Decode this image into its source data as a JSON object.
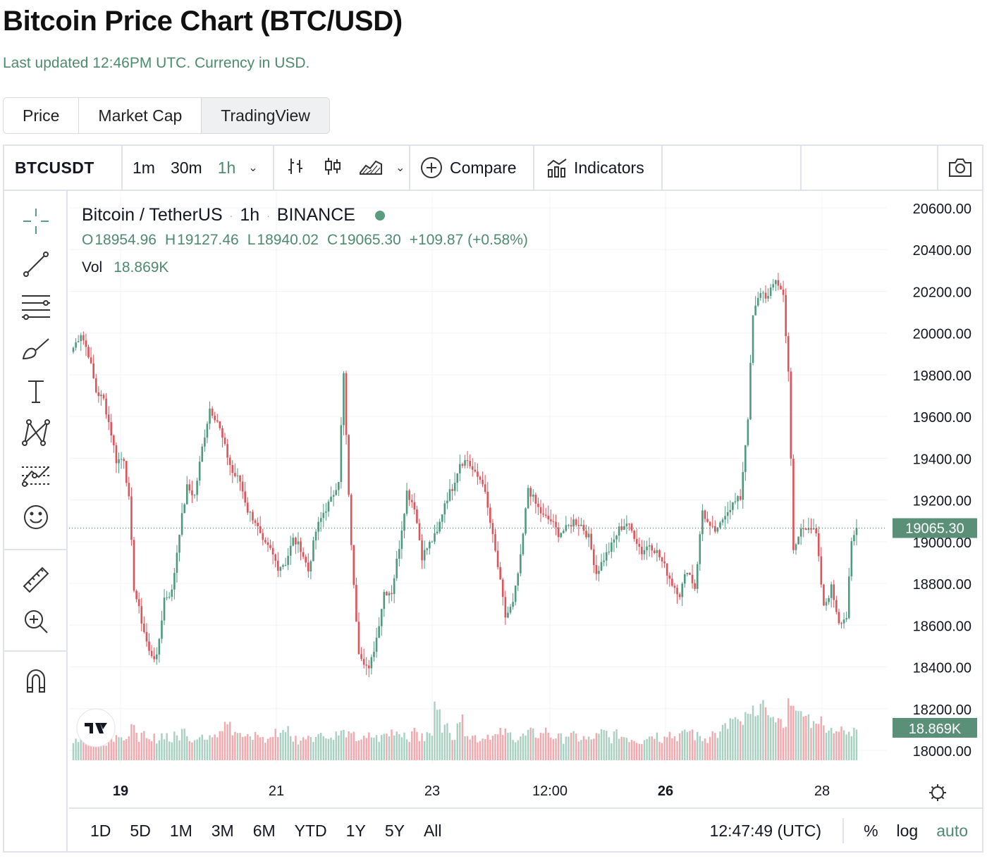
{
  "header": {
    "title": "Bitcoin Price Chart (BTC/USD)",
    "subtitle": "Last updated 12:46PM UTC. Currency in USD."
  },
  "tabs": [
    {
      "label": "Price"
    },
    {
      "label": "Market Cap"
    },
    {
      "label": "TradingView",
      "active": true
    }
  ],
  "toolbar": {
    "symbol": "BTCUSDT",
    "intervals": [
      "1m",
      "30m",
      "1h"
    ],
    "active_interval": "1h",
    "compare_label": "Compare",
    "indicators_label": "Indicators",
    "style_icons": [
      "bar-chart-icon",
      "candlestick-icon",
      "area-chart-icon"
    ],
    "camera_icon": "camera-icon"
  },
  "drawing_tools": [
    "crosshair-icon",
    "trend-line-icon",
    "horizontal-lines-icon",
    "brush-icon",
    "text-tool-icon",
    "pattern-icon",
    "prediction-icon",
    "smiley-icon",
    "ruler-icon",
    "zoom-in-icon",
    "magnet-icon"
  ],
  "legend": {
    "name": "Bitcoin / TetherUS",
    "interval": "1h",
    "exchange": "BINANCE",
    "o_label": "O",
    "o": "18954.96",
    "h_label": "H",
    "h": "19127.46",
    "l_label": "L",
    "l": "18940.02",
    "c_label": "C",
    "c": "19065.30",
    "change": "+109.87 (+0.58%)",
    "vol_label": "Vol",
    "vol": "18.869K"
  },
  "bottom_bar": {
    "ranges": [
      "1D",
      "5D",
      "1M",
      "3M",
      "6M",
      "YTD",
      "1Y",
      "5Y",
      "All"
    ],
    "time": "12:47:49 (UTC)",
    "percent": "%",
    "log": "log",
    "auto": "auto"
  },
  "colors": {
    "up": "#4f9a7f",
    "down": "#e0525a",
    "accent": "#4d8a6f",
    "price_tag": "#5a8f78"
  },
  "chart_data": {
    "type": "candlestick",
    "title": "Bitcoin / TetherUS",
    "interval": "1h",
    "exchange": "BINANCE",
    "y_ticks": [
      "20600.00",
      "20400.00",
      "20200.00",
      "20000.00",
      "19800.00",
      "19600.00",
      "19400.00",
      "19200.00",
      "19000.00",
      "18800.00",
      "18600.00",
      "18400.00",
      "18200.00",
      "18000.00"
    ],
    "x_ticks": [
      "19",
      "21",
      "23",
      "12:00",
      "26",
      "28"
    ],
    "x_ticks_bold": [
      "19",
      "26"
    ],
    "last_price": "19065.30",
    "last_volume": "18.869K",
    "ylim": [
      18000,
      20600
    ],
    "close_series_approx": [
      [
        0,
        19930
      ],
      [
        3,
        20000
      ],
      [
        6,
        19900
      ],
      [
        9,
        19720
      ],
      [
        12,
        19680
      ],
      [
        15,
        19520
      ],
      [
        17,
        19390
      ],
      [
        20,
        19400
      ],
      [
        22,
        19200
      ],
      [
        24,
        18780
      ],
      [
        27,
        18620
      ],
      [
        30,
        18470
      ],
      [
        33,
        18440
      ],
      [
        36,
        18730
      ],
      [
        39,
        18760
      ],
      [
        42,
        19050
      ],
      [
        45,
        19260
      ],
      [
        48,
        19220
      ],
      [
        51,
        19450
      ],
      [
        54,
        19640
      ],
      [
        57,
        19580
      ],
      [
        60,
        19450
      ],
      [
        63,
        19330
      ],
      [
        66,
        19290
      ],
      [
        69,
        19150
      ],
      [
        72,
        19100
      ],
      [
        75,
        18990
      ],
      [
        78,
        18960
      ],
      [
        81,
        18880
      ],
      [
        84,
        18900
      ],
      [
        87,
        19010
      ],
      [
        90,
        18970
      ],
      [
        93,
        18860
      ],
      [
        96,
        19050
      ],
      [
        99,
        19140
      ],
      [
        102,
        19200
      ],
      [
        105,
        19300
      ],
      [
        107,
        19800
      ],
      [
        109,
        19210
      ],
      [
        111,
        18780
      ],
      [
        113,
        18480
      ],
      [
        115,
        18430
      ],
      [
        117,
        18380
      ],
      [
        120,
        18540
      ],
      [
        123,
        18760
      ],
      [
        126,
        18760
      ],
      [
        129,
        18980
      ],
      [
        132,
        19240
      ],
      [
        135,
        19170
      ],
      [
        138,
        18930
      ],
      [
        141,
        18990
      ],
      [
        144,
        19040
      ],
      [
        147,
        19190
      ],
      [
        150,
        19260
      ],
      [
        153,
        19380
      ],
      [
        156,
        19390
      ],
      [
        159,
        19320
      ],
      [
        162,
        19290
      ],
      [
        165,
        19090
      ],
      [
        168,
        18880
      ],
      [
        171,
        18640
      ],
      [
        174,
        18700
      ],
      [
        177,
        18920
      ],
      [
        180,
        19260
      ],
      [
        183,
        19180
      ],
      [
        186,
        19120
      ],
      [
        189,
        19100
      ],
      [
        192,
        19040
      ],
      [
        195,
        19060
      ],
      [
        198,
        19100
      ],
      [
        201,
        19080
      ],
      [
        204,
        19020
      ],
      [
        207,
        18850
      ],
      [
        210,
        18920
      ],
      [
        213,
        18980
      ],
      [
        216,
        19060
      ],
      [
        219,
        19090
      ],
      [
        222,
        19030
      ],
      [
        225,
        18950
      ],
      [
        228,
        18990
      ],
      [
        231,
        18950
      ],
      [
        234,
        18880
      ],
      [
        237,
        18800
      ],
      [
        240,
        18750
      ],
      [
        243,
        18870
      ],
      [
        246,
        18780
      ],
      [
        249,
        19150
      ],
      [
        252,
        19060
      ],
      [
        255,
        19050
      ],
      [
        258,
        19140
      ],
      [
        261,
        19180
      ],
      [
        264,
        19210
      ],
      [
        267,
        19600
      ],
      [
        269,
        20080
      ],
      [
        272,
        20200
      ],
      [
        275,
        20170
      ],
      [
        278,
        20260
      ],
      [
        281,
        20180
      ],
      [
        283,
        19820
      ],
      [
        285,
        18950
      ],
      [
        288,
        19060
      ],
      [
        291,
        19080
      ],
      [
        294,
        19030
      ],
      [
        297,
        18680
      ],
      [
        300,
        18780
      ],
      [
        303,
        18620
      ],
      [
        306,
        18640
      ],
      [
        308,
        18990
      ],
      [
        310,
        19065
      ]
    ],
    "volume_approx_k": [
      12,
      14,
      10,
      16,
      11,
      13,
      15,
      12,
      17,
      13,
      10,
      12,
      14,
      11,
      13,
      16,
      12,
      14,
      11,
      15,
      18,
      22,
      16,
      13,
      12,
      14,
      11,
      13,
      15,
      17,
      12,
      11,
      14,
      13,
      16,
      12,
      14,
      15,
      13,
      12,
      11,
      13,
      12,
      14,
      16,
      15,
      13,
      17,
      12,
      14,
      30,
      18,
      14,
      22,
      16,
      13,
      12,
      14,
      13,
      15,
      14,
      12,
      13,
      15,
      14,
      16,
      13,
      12,
      14,
      13,
      12,
      11,
      13,
      15,
      12,
      14,
      13,
      12,
      11,
      13,
      14,
      12,
      15,
      13,
      14,
      16,
      13,
      12,
      15,
      14,
      18,
      22,
      20,
      24,
      27,
      30,
      26,
      22,
      20,
      32,
      25,
      24,
      20,
      22,
      18,
      17,
      16,
      14,
      19
    ]
  }
}
